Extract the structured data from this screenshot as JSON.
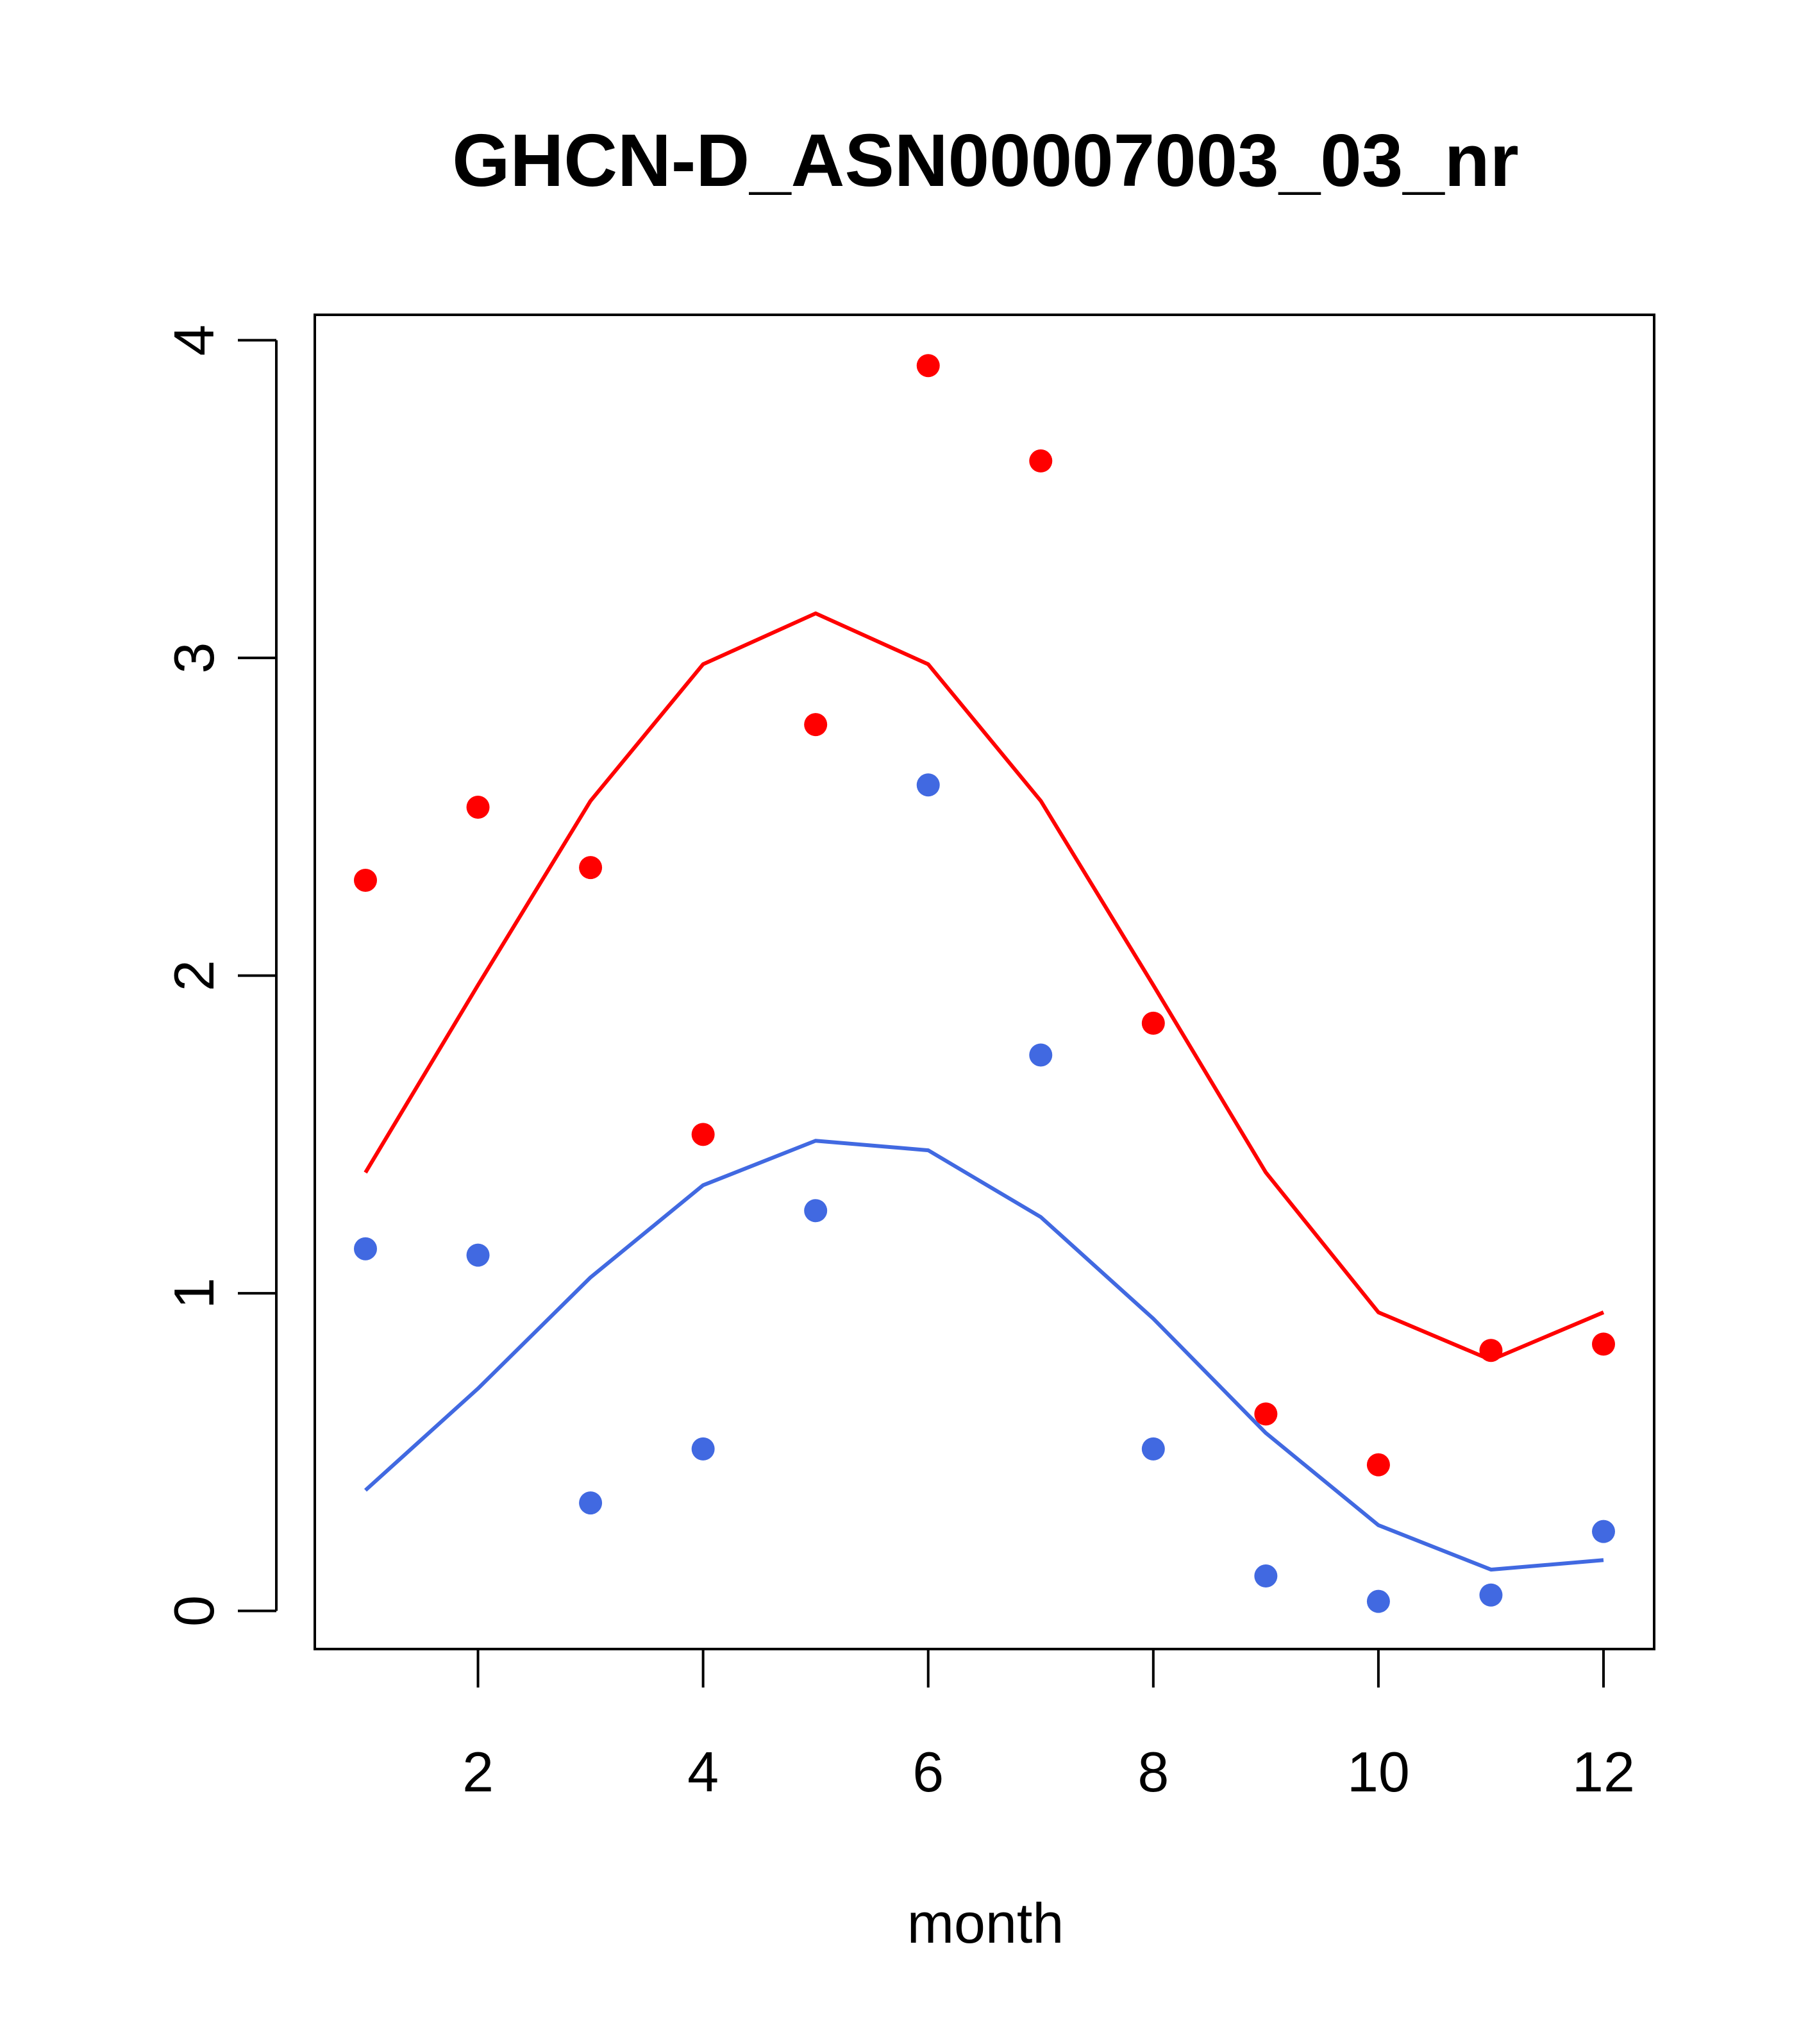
{
  "chart_data": {
    "type": "scatter",
    "title": "GHCN-D_ASN00007003_03_nr",
    "xlabel": "month",
    "ylabel": "",
    "xlim": [
      0.55,
      12.45
    ],
    "ylim": [
      -0.12,
      4.08
    ],
    "x_ticks": [
      2,
      4,
      6,
      8,
      10,
      12
    ],
    "y_ticks": [
      0,
      1,
      2,
      3,
      4
    ],
    "grid": false,
    "legend": "none",
    "x": [
      1,
      2,
      3,
      4,
      5,
      6,
      7,
      8,
      9,
      10,
      11,
      12
    ],
    "series": [
      {
        "color": "#ff0000",
        "points": [
          2.3,
          2.53,
          2.34,
          1.5,
          2.79,
          3.92,
          3.62,
          1.85,
          0.62,
          0.46,
          0.82,
          0.84
        ],
        "line": [
          1.38,
          1.97,
          2.55,
          2.98,
          3.14,
          2.98,
          2.55,
          1.97,
          1.38,
          0.94,
          0.79,
          0.94
        ]
      },
      {
        "color": "#4169e1",
        "points": [
          1.14,
          1.12,
          0.34,
          0.51,
          1.26,
          2.6,
          1.75,
          0.51,
          0.11,
          0.03,
          0.05,
          0.25
        ],
        "line": [
          0.38,
          0.7,
          1.05,
          1.34,
          1.48,
          1.45,
          1.24,
          0.92,
          0.56,
          0.27,
          0.13,
          0.16
        ]
      }
    ]
  }
}
